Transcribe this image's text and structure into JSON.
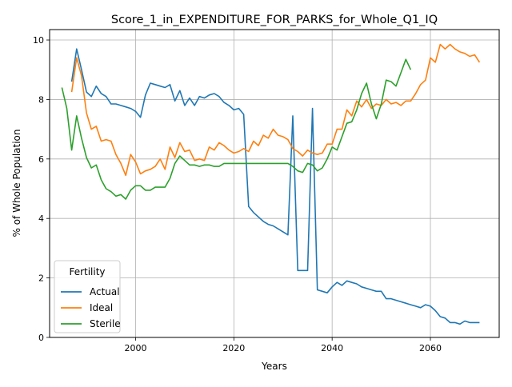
{
  "chart_data": {
    "type": "line",
    "title": "Score_1_in_EXPENDITURE_FOR_PARKS_for_Whole_Q1_IQ",
    "xlabel": "Years",
    "ylabel": "% of Whole Population",
    "xlim": [
      1982.5,
      2074
    ],
    "ylim": [
      0,
      10.35
    ],
    "x_ticks": [
      2000,
      2020,
      2040,
      2060
    ],
    "y_ticks": [
      0,
      2,
      4,
      6,
      8,
      10
    ],
    "grid": true,
    "legend": {
      "title": "Fertility",
      "placement": "lower-left"
    },
    "series": [
      {
        "name": "Actual",
        "color": "#1f77b4",
        "x": [
          1987,
          1988,
          1989,
          1990,
          1991,
          1992,
          1993,
          1994,
          1995,
          1996,
          1997,
          1998,
          1999,
          2000,
          2001,
          2002,
          2003,
          2004,
          2005,
          2006,
          2007,
          2008,
          2009,
          2010,
          2011,
          2012,
          2013,
          2014,
          2015,
          2016,
          2017,
          2018,
          2019,
          2020,
          2021,
          2022,
          2023,
          2024,
          2025,
          2026,
          2027,
          2028,
          2029,
          2030,
          2031,
          2032,
          2033,
          2034,
          2035,
          2036,
          2037,
          2038,
          2039,
          2040,
          2041,
          2042,
          2043,
          2044,
          2045,
          2046,
          2047,
          2048,
          2049,
          2050,
          2051,
          2052,
          2053,
          2054,
          2055,
          2056,
          2057,
          2058,
          2059,
          2060,
          2061,
          2062,
          2063,
          2064,
          2065,
          2066,
          2067,
          2068,
          2069,
          2070
        ],
        "y": [
          8.6,
          9.7,
          9.0,
          8.25,
          8.1,
          8.45,
          8.2,
          8.1,
          7.85,
          7.85,
          7.8,
          7.75,
          7.7,
          7.6,
          7.4,
          8.15,
          8.55,
          8.5,
          8.45,
          8.4,
          8.5,
          7.95,
          8.3,
          7.8,
          8.05,
          7.8,
          8.1,
          8.05,
          8.15,
          8.2,
          8.1,
          7.9,
          7.8,
          7.65,
          7.7,
          7.5,
          4.4,
          4.2,
          4.05,
          3.9,
          3.8,
          3.75,
          3.65,
          3.55,
          3.45,
          7.45,
          2.25,
          2.25,
          2.25,
          7.7,
          1.6,
          1.55,
          1.5,
          1.7,
          1.85,
          1.75,
          1.9,
          1.85,
          1.8,
          1.7,
          1.65,
          1.6,
          1.55,
          1.55,
          1.3,
          1.3,
          1.25,
          1.2,
          1.15,
          1.1,
          1.05,
          1.0,
          1.1,
          1.05,
          0.9,
          0.7,
          0.65,
          0.5,
          0.5,
          0.45,
          0.55,
          0.5,
          0.5,
          0.5
        ]
      },
      {
        "name": "Ideal",
        "color": "#ff7f0e",
        "x": [
          1987,
          1988,
          1989,
          1990,
          1991,
          1992,
          1993,
          1994,
          1995,
          1996,
          1997,
          1998,
          1999,
          2000,
          2001,
          2002,
          2003,
          2004,
          2005,
          2006,
          2007,
          2008,
          2009,
          2010,
          2011,
          2012,
          2013,
          2014,
          2015,
          2016,
          2017,
          2018,
          2019,
          2020,
          2021,
          2022,
          2023,
          2024,
          2025,
          2026,
          2027,
          2028,
          2029,
          2030,
          2031,
          2032,
          2033,
          2034,
          2035,
          2036,
          2037,
          2038,
          2039,
          2040,
          2041,
          2042,
          2043,
          2044,
          2045,
          2046,
          2047,
          2048,
          2049,
          2050,
          2051,
          2052,
          2053,
          2054,
          2055,
          2056,
          2057,
          2058,
          2059,
          2060,
          2061,
          2062,
          2063,
          2064,
          2065,
          2066,
          2067,
          2068,
          2069,
          2070
        ],
        "y": [
          8.25,
          9.4,
          8.8,
          7.55,
          7.0,
          7.1,
          6.6,
          6.65,
          6.6,
          6.15,
          5.85,
          5.45,
          6.15,
          5.9,
          5.5,
          5.6,
          5.65,
          5.75,
          6.0,
          5.65,
          6.4,
          6.05,
          6.55,
          6.25,
          6.3,
          5.95,
          6.0,
          5.95,
          6.4,
          6.3,
          6.55,
          6.45,
          6.3,
          6.2,
          6.25,
          6.35,
          6.25,
          6.6,
          6.45,
          6.8,
          6.7,
          7.0,
          6.8,
          6.75,
          6.65,
          6.35,
          6.25,
          6.1,
          6.3,
          6.2,
          6.15,
          6.2,
          6.5,
          6.5,
          7.0,
          7.0,
          7.65,
          7.45,
          7.95,
          7.75,
          8.0,
          7.7,
          7.85,
          7.8,
          8.0,
          7.85,
          7.9,
          7.8,
          7.95,
          7.95,
          8.2,
          8.5,
          8.65,
          9.4,
          9.25,
          9.85,
          9.7,
          9.85,
          9.7,
          9.6,
          9.55,
          9.45,
          9.5,
          9.25
        ]
      },
      {
        "name": "Sterile",
        "color": "#2ca02c",
        "x": [
          1985,
          1986,
          1987,
          1988,
          1989,
          1990,
          1991,
          1992,
          1993,
          1994,
          1995,
          1996,
          1997,
          1998,
          1999,
          2000,
          2001,
          2002,
          2003,
          2004,
          2005,
          2006,
          2007,
          2008,
          2009,
          2010,
          2011,
          2012,
          2013,
          2014,
          2015,
          2016,
          2017,
          2018,
          2019,
          2020,
          2021,
          2022,
          2023,
          2024,
          2025,
          2026,
          2027,
          2028,
          2029,
          2030,
          2031,
          2032,
          2033,
          2034,
          2035,
          2036,
          2037,
          2038,
          2039,
          2040,
          2041,
          2042,
          2043,
          2044,
          2045,
          2046,
          2047,
          2048,
          2049,
          2050,
          2051,
          2052,
          2053,
          2054,
          2055,
          2056
        ],
        "y": [
          8.4,
          7.7,
          6.3,
          7.45,
          6.7,
          6.05,
          5.7,
          5.8,
          5.3,
          5.0,
          4.9,
          4.75,
          4.8,
          4.65,
          4.95,
          5.1,
          5.1,
          4.95,
          4.95,
          5.05,
          5.05,
          5.05,
          5.35,
          5.85,
          6.1,
          5.95,
          5.8,
          5.8,
          5.75,
          5.8,
          5.8,
          5.75,
          5.75,
          5.85,
          5.85,
          5.85,
          5.85,
          5.85,
          5.85,
          5.85,
          5.85,
          5.85,
          5.85,
          5.85,
          5.85,
          5.85,
          5.85,
          5.75,
          5.6,
          5.55,
          5.85,
          5.8,
          5.6,
          5.7,
          6.0,
          6.4,
          6.3,
          6.75,
          7.2,
          7.25,
          7.65,
          8.2,
          8.55,
          7.85,
          7.35,
          7.85,
          8.65,
          8.6,
          8.45,
          8.9,
          9.35,
          9.0
        ]
      }
    ]
  }
}
